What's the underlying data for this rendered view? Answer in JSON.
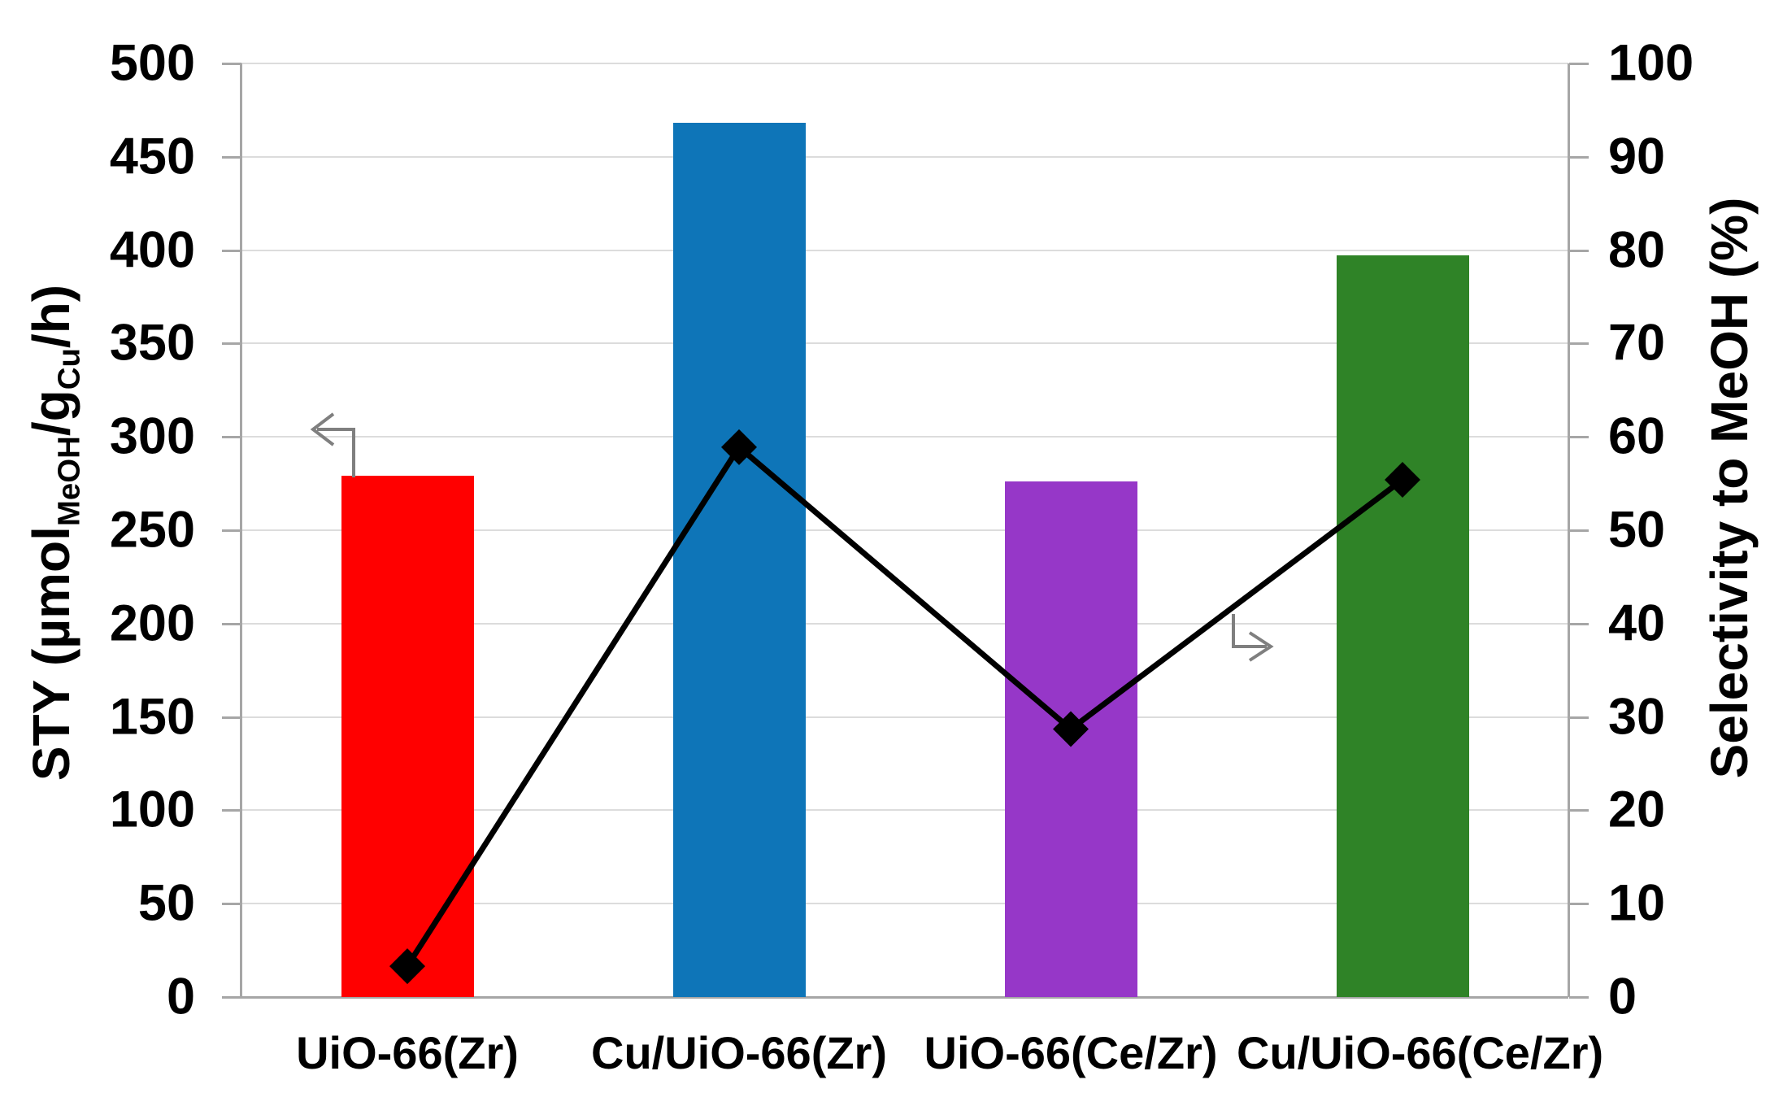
{
  "chart_data": {
    "type": "bar",
    "subtype": "combo-bar-line-dual-axis",
    "categories": [
      "UiO-66(Zr)",
      "Cu/UiO-66(Zr)",
      "UiO-66(Ce/Zr)",
      "Cu/UiO-66(Ce/Zr)"
    ],
    "series": [
      {
        "name": "STY",
        "type": "bar",
        "axis": "left",
        "values": [
          279,
          468,
          276,
          397
        ],
        "bar_colors": [
          "#ff0000",
          "#0e75b8",
          "#9637c8",
          "#2f8327"
        ]
      },
      {
        "name": "Selectivity to MeOH",
        "type": "line",
        "axis": "right",
        "values": [
          3.3,
          58.9,
          28.7,
          55.4
        ],
        "color": "#000000",
        "marker": "diamond"
      }
    ],
    "left_axis": {
      "title_parts": [
        {
          "text": "STY (µmol"
        },
        {
          "text": "MeOH",
          "sub": true
        },
        {
          "text": "/g"
        },
        {
          "text": "Cu",
          "sub": true
        },
        {
          "text": "/h)"
        }
      ],
      "min": 0,
      "max": 500,
      "step": 50,
      "tick_labels": [
        "500",
        "450",
        "400",
        "350",
        "300",
        "250",
        "200",
        "150",
        "100",
        "50",
        "0"
      ]
    },
    "right_axis": {
      "title": "Selectivity to MeOH (%)",
      "min": 0,
      "max": 100,
      "step": 10,
      "tick_labels": [
        "100",
        "90",
        "80",
        "70",
        "60",
        "50",
        "40",
        "30",
        "20",
        "10",
        "0"
      ]
    },
    "title": "",
    "legend": "none",
    "grid": "horizontal",
    "annotations": [
      {
        "icon": "elbow-arrow-left-icon",
        "points_to": "left axis",
        "color": "#7f7f7f"
      },
      {
        "icon": "elbow-arrow-right-icon",
        "points_to": "right axis",
        "color": "#7f7f7f"
      }
    ],
    "colors": {
      "gridline": "#dcdcdc",
      "axis_line": "#a6a6a6",
      "text": "#000000",
      "background": "#ffffff"
    }
  }
}
